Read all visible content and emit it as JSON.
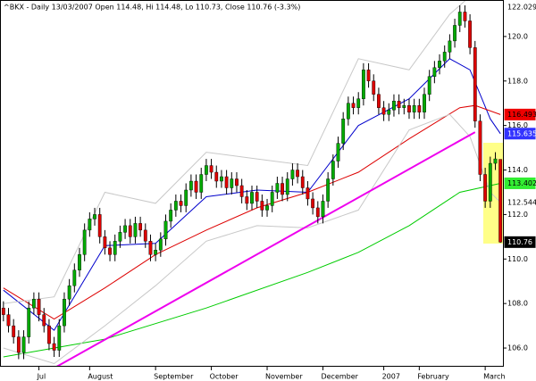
{
  "chart_data": {
    "type": "candlestick",
    "title": "^BKX - Daily 13/03/2007 Open 114.48, Hi 114.48, Lo 110.73, Close 110.76 (-3.3%)",
    "up_color": "#00aa00",
    "down_color": "#dd0000",
    "xlim": [
      -0.5,
      98.5
    ],
    "ylim": [
      105.2,
      121.6
    ],
    "yticks": [
      {
        "value": 120,
        "label": "120.0"
      },
      {
        "value": 118,
        "label": "118.0"
      },
      {
        "value": 116,
        "label": "116.0"
      },
      {
        "value": 114,
        "label": "114.0"
      },
      {
        "value": 112,
        "label": "112.0"
      },
      {
        "value": 110,
        "label": "110.0"
      },
      {
        "value": 108,
        "label": "108.0"
      },
      {
        "value": 106,
        "label": "106.0"
      }
    ],
    "xticks": [
      {
        "value": 7,
        "label": "Jul"
      },
      {
        "value": 17,
        "label": "August"
      },
      {
        "value": 30,
        "label": "September"
      },
      {
        "value": 41,
        "label": "October"
      },
      {
        "value": 52,
        "label": "November"
      },
      {
        "value": 63,
        "label": "December"
      },
      {
        "value": 75,
        "label": "2007"
      },
      {
        "value": 82,
        "label": "February"
      },
      {
        "value": 95,
        "label": "March"
      }
    ],
    "ohlc": [
      [
        107.8,
        108.1,
        107.2,
        107.5
      ],
      [
        107.5,
        107.8,
        106.7,
        107
      ],
      [
        107,
        107.3,
        106.2,
        106.5
      ],
      [
        106.5,
        106.8,
        105.5,
        105.8
      ],
      [
        105.8,
        106.8,
        105.5,
        106.5
      ],
      [
        106.5,
        108.1,
        106.2,
        107.8
      ],
      [
        107.8,
        108.5,
        107.5,
        108.2
      ],
      [
        108.2,
        108.5,
        107.2,
        107.5
      ],
      [
        107.5,
        107.8,
        106.7,
        107
      ],
      [
        107,
        107.3,
        105.9,
        106.2
      ],
      [
        106.2,
        106.5,
        105.6,
        105.9
      ],
      [
        105.9,
        107.3,
        105.6,
        107
      ],
      [
        107,
        108.5,
        106.7,
        108.2
      ],
      [
        108.2,
        109.1,
        107.9,
        108.8
      ],
      [
        108.8,
        109.8,
        108.5,
        109.5
      ],
      [
        109.5,
        110.5,
        109.2,
        110.2
      ],
      [
        110.2,
        111.6,
        109.9,
        111.3
      ],
      [
        111.3,
        112.1,
        111,
        111.8
      ],
      [
        111.8,
        112.3,
        111.5,
        112
      ],
      [
        112,
        112.3,
        110.7,
        111
      ],
      [
        111,
        111.3,
        110.2,
        110.5
      ],
      [
        110.5,
        110.8,
        109.9,
        110.2
      ],
      [
        110.2,
        111.1,
        109.9,
        110.8
      ],
      [
        110.8,
        111.5,
        110.5,
        111.2
      ],
      [
        111.2,
        111.8,
        110.9,
        111.5
      ],
      [
        111.5,
        111.8,
        110.7,
        111
      ],
      [
        111,
        111.9,
        110.7,
        111.6
      ],
      [
        111.6,
        111.9,
        111,
        111.3
      ],
      [
        111.3,
        111.6,
        110.5,
        110.8
      ],
      [
        110.8,
        111.1,
        109.9,
        110.2
      ],
      [
        110.2,
        110.7,
        109.9,
        110.4
      ],
      [
        110.4,
        111.2,
        110.1,
        110.9
      ],
      [
        110.9,
        112,
        110.6,
        111.7
      ],
      [
        111.7,
        112.5,
        111.4,
        112.2
      ],
      [
        112.2,
        112.9,
        111.9,
        112.6
      ],
      [
        112.6,
        112.9,
        112.1,
        112.4
      ],
      [
        112.4,
        113.4,
        112.1,
        113.1
      ],
      [
        113.1,
        113.8,
        112.8,
        113.5
      ],
      [
        113.5,
        113.8,
        112.7,
        113
      ],
      [
        113,
        114.1,
        112.7,
        113.8
      ],
      [
        113.8,
        114.5,
        113.5,
        114.2
      ],
      [
        114.2,
        114.5,
        113.6,
        113.9
      ],
      [
        113.9,
        114.2,
        113.2,
        113.5
      ],
      [
        113.5,
        114,
        113.2,
        113.7
      ],
      [
        113.7,
        114,
        112.9,
        113.2
      ],
      [
        113.2,
        113.9,
        112.9,
        113.6
      ],
      [
        113.6,
        113.9,
        113,
        113.3
      ],
      [
        113.3,
        113.6,
        112.5,
        112.8
      ],
      [
        112.8,
        113.1,
        112.2,
        112.5
      ],
      [
        112.5,
        113.3,
        112.2,
        113
      ],
      [
        113,
        113.3,
        112.3,
        112.6
      ],
      [
        112.6,
        112.9,
        111.9,
        112.2
      ],
      [
        112.2,
        112.7,
        111.9,
        112.4
      ],
      [
        112.4,
        113.3,
        112.1,
        113
      ],
      [
        113,
        113.7,
        112.7,
        113.4
      ],
      [
        113.4,
        113.7,
        112.6,
        112.9
      ],
      [
        112.9,
        113.9,
        112.6,
        113.6
      ],
      [
        113.6,
        114.3,
        113.3,
        114
      ],
      [
        114,
        114.3,
        113.4,
        113.7
      ],
      [
        113.7,
        114,
        112.9,
        113.2
      ],
      [
        113.2,
        113.5,
        112.4,
        112.7
      ],
      [
        112.7,
        113,
        112,
        112.3
      ],
      [
        112.3,
        112.6,
        111.6,
        111.9
      ],
      [
        111.9,
        112.9,
        111.6,
        112.6
      ],
      [
        112.6,
        113.9,
        112.3,
        113.6
      ],
      [
        113.6,
        114.7,
        113.3,
        114.4
      ],
      [
        114.4,
        115.5,
        114.1,
        115.2
      ],
      [
        115.2,
        116.6,
        114.9,
        116.3
      ],
      [
        116.3,
        117.3,
        116,
        117
      ],
      [
        117,
        117.3,
        116.5,
        116.8
      ],
      [
        116.8,
        117.5,
        116.5,
        117.2
      ],
      [
        117.2,
        118.8,
        116.9,
        118.5
      ],
      [
        118.5,
        118.8,
        117.7,
        118
      ],
      [
        118,
        118.3,
        117.1,
        117.4
      ],
      [
        117.4,
        117.7,
        116.5,
        116.8
      ],
      [
        116.8,
        117.1,
        116.2,
        116.5
      ],
      [
        116.5,
        117,
        116.2,
        116.7
      ],
      [
        116.7,
        117.4,
        116.4,
        117.1
      ],
      [
        117.1,
        117.4,
        116.5,
        116.8
      ],
      [
        116.8,
        117.2,
        116.5,
        116.9
      ],
      [
        116.9,
        117.2,
        116.3,
        116.6
      ],
      [
        116.6,
        117.2,
        116.3,
        116.9
      ],
      [
        116.9,
        117.2,
        116.3,
        116.6
      ],
      [
        116.6,
        117.7,
        116.3,
        117.4
      ],
      [
        117.4,
        118.5,
        117.1,
        118.2
      ],
      [
        118.2,
        118.9,
        117.9,
        118.6
      ],
      [
        118.6,
        119.2,
        118.3,
        118.9
      ],
      [
        118.9,
        119.6,
        118.6,
        119.3
      ],
      [
        119.3,
        120.1,
        119,
        119.8
      ],
      [
        119.8,
        120.8,
        119.5,
        120.5
      ],
      [
        120.5,
        121.4,
        120.2,
        121.1
      ],
      [
        121.1,
        121.4,
        120.4,
        120.7
      ],
      [
        120.7,
        121,
        119.2,
        119.5
      ],
      [
        119.5,
        119.8,
        115.9,
        116.2
      ],
      [
        116.2,
        116.5,
        113.5,
        113.8
      ],
      [
        113.8,
        114.1,
        112.3,
        112.6
      ],
      [
        112.6,
        114.6,
        112.3,
        114.3
      ],
      [
        114.3,
        114.8,
        114,
        114.5
      ],
      [
        114.48,
        114.48,
        110.73,
        110.76
      ]
    ],
    "lines": [
      {
        "color": "#0000cc",
        "x": [
          0,
          10,
          20,
          30,
          40,
          50,
          60,
          70,
          80,
          88,
          92,
          96,
          98
        ],
        "values": [
          108.6,
          106.8,
          110.6,
          110.7,
          112.8,
          113.1,
          113,
          116,
          117.2,
          119,
          118.5,
          116.3,
          115.635
        ]
      },
      {
        "color": "#dd0000",
        "x": [
          0,
          10,
          20,
          30,
          40,
          50,
          60,
          70,
          80,
          90,
          93,
          98
        ],
        "values": [
          108.7,
          107.3,
          108.7,
          110.2,
          111.3,
          112.3,
          113,
          113.9,
          115.4,
          116.8,
          116.9,
          116.493
        ]
      },
      {
        "color": "#00cc00",
        "x": [
          0,
          20,
          40,
          60,
          70,
          80,
          90,
          98
        ],
        "values": [
          105.6,
          106.4,
          107.8,
          109.4,
          110.3,
          111.5,
          113,
          113.402
        ]
      },
      {
        "color": "#c8c8c8",
        "x": [
          0,
          10,
          20,
          30,
          40,
          50,
          60,
          70,
          80,
          88,
          92,
          98
        ],
        "values": [
          108,
          108.3,
          113,
          112.5,
          114.8,
          114.5,
          114.2,
          119,
          118.5,
          121,
          121.8,
          122.029
        ]
      },
      {
        "color": "#c8c8c8",
        "x": [
          0,
          10,
          20,
          30,
          40,
          50,
          60,
          70,
          80,
          88,
          92,
          96,
          98
        ],
        "values": [
          106,
          105.3,
          107,
          108.8,
          110.8,
          111.5,
          111.4,
          112.2,
          115.8,
          116.5,
          115.5,
          113,
          112.544
        ]
      },
      {
        "color": "#ee00ee",
        "width": 2,
        "x": [
          10,
          93
        ],
        "values": [
          105.1,
          115.7
        ]
      }
    ],
    "price_labels": [
      {
        "value": 122.029,
        "color": "#ffffff",
        "text_color": "#000000"
      },
      {
        "value": 116.493,
        "color": "#ee0000",
        "text_color": "#000000"
      },
      {
        "value": 115.635,
        "color": "#3333ff",
        "text_color": "#ffffff"
      },
      {
        "value": 113.402,
        "color": "#33ee33",
        "text_color": "#000000"
      },
      {
        "value": 112.544,
        "color": "#ffffff",
        "text_color": "#000000"
      },
      {
        "value": 110.76,
        "color": "#000000",
        "text_color": "#ffffff"
      }
    ]
  }
}
